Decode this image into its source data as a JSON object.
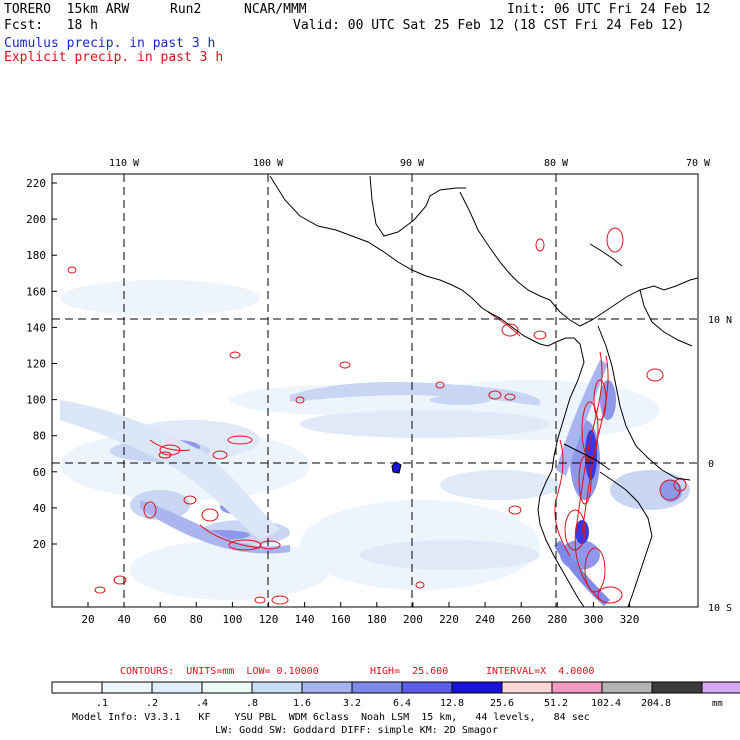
{
  "header": {
    "model": "TORERO  15km ARW",
    "run": "Run2",
    "org": "NCAR/MMM",
    "init": "Init: 06 UTC Fri 24 Feb 12",
    "fcst": "Fcst:   18 h",
    "valid": "Valid: 00 UTC Sat 25 Feb 12 (18 CST Fri 24 Feb 12)",
    "field1": "Cumulus precip. in past 3 h",
    "field2": "Explicit precip. in past 3 h"
  },
  "map": {
    "lon_labels": [
      "110 W",
      "100 W",
      "90 W",
      "80 W",
      "70 W"
    ],
    "lat_labels": [
      "10 N",
      "0",
      "10 S"
    ],
    "y_ticks": [
      "220",
      "200",
      "180",
      "160",
      "140",
      "120",
      "100",
      "80",
      "60",
      "40",
      "20"
    ],
    "x_ticks": [
      "20",
      "40",
      "60",
      "80",
      "100",
      "120",
      "140",
      "160",
      "180",
      "200",
      "220",
      "240",
      "260",
      "280",
      "300",
      "320"
    ],
    "colors": {
      "coast": "#000000",
      "grid": "#000000",
      "contour": "#e0101a"
    }
  },
  "contour_info": {
    "label": "CONTOURS:  UNITS=mm  LOW= 0.10000",
    "high": "HIGH=  25.600",
    "interval": "INTERVAL=X  4.0000"
  },
  "colorbar": {
    "labels": [
      ".1",
      ".2",
      ".4",
      ".8",
      "1.6",
      "3.2",
      "6.4",
      "12.8",
      "25.6",
      "51.2",
      "102.4",
      "204.8"
    ],
    "unit": "mm",
    "colors": [
      "#ffffff",
      "#eef6fb",
      "#dfeefa",
      "#ecfbf8",
      "#c9def5",
      "#a5b4ef",
      "#7f89e8",
      "#5a5fe6",
      "#1c12e0",
      "#ffd7d7",
      "#f29ac2",
      "#b4b4b4",
      "#3c3c3c",
      "#d6a9f7"
    ]
  },
  "footer": {
    "line1": "Model Info: V3.3.1   KF    YSU PBL  WDM 6class  Noah LSM  15 km,   44 levels,   84 sec",
    "line2": "LW: Godd SW: Goddard DIFF: simple KM: 2D Smagor"
  }
}
